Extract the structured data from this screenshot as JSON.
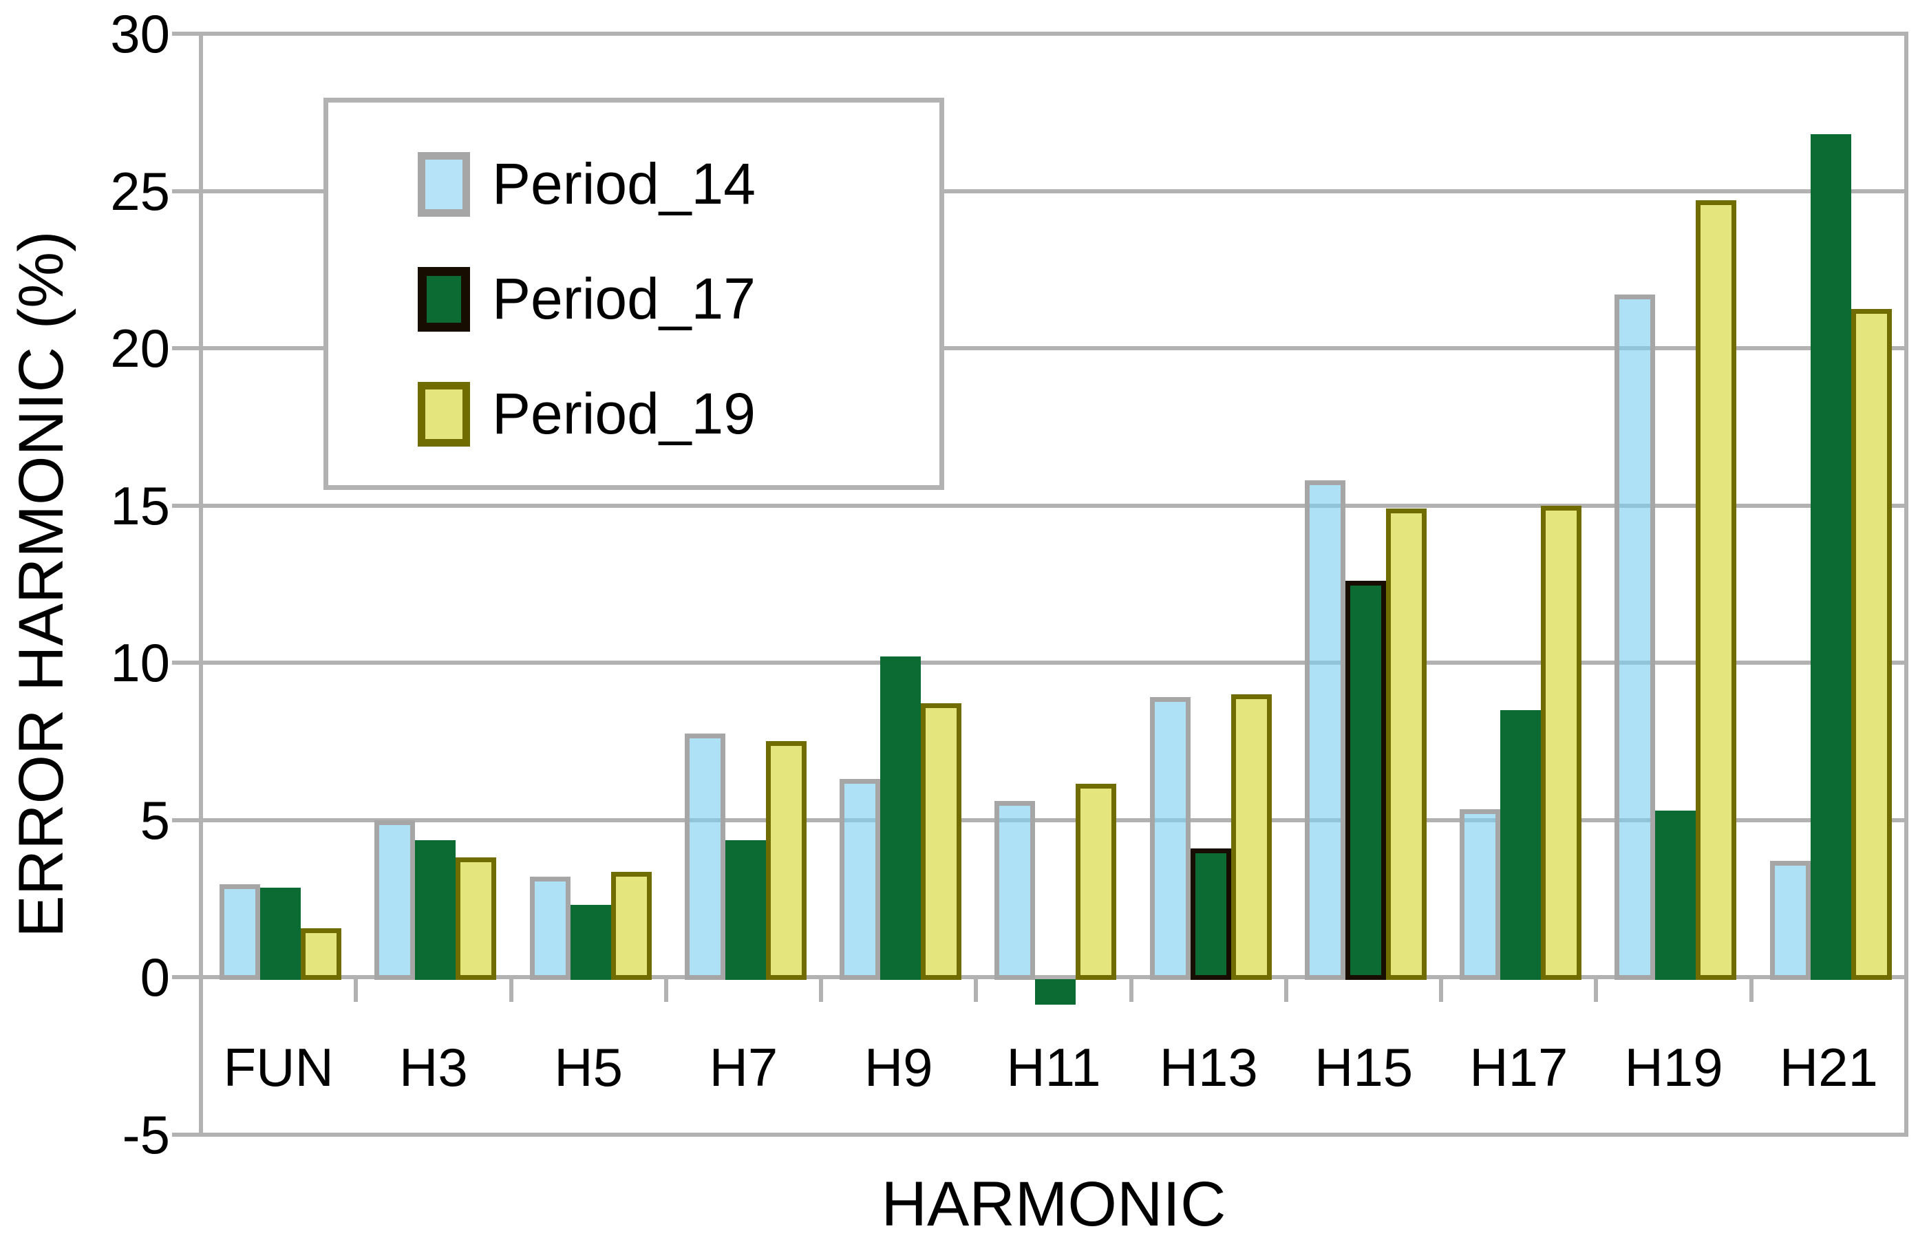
{
  "chart_data": {
    "type": "bar",
    "title": "",
    "xlabel": "HARMONIC",
    "ylabel": "ERROR HARMONIC (%)",
    "categories": [
      "FUN",
      "H3",
      "H5",
      "H7",
      "H9",
      "H11",
      "H13",
      "H15",
      "H17",
      "H19",
      "H21"
    ],
    "series": [
      {
        "name": "Period_14",
        "fill": "rgba(125,206,240,0.62)",
        "legend_fill": "#b6e3f7",
        "border_color": "#a6a6a6",
        "border_all": true,
        "bordered_bars": [],
        "values": [
          2.95,
          5.0,
          3.2,
          7.75,
          6.3,
          5.6,
          8.9,
          15.8,
          5.35,
          21.7,
          3.7
        ]
      },
      {
        "name": "Period_17",
        "fill": "#0c6a33",
        "legend_fill": "#0c6a33",
        "border_color": "#170d01",
        "border_all": false,
        "bordered_bars": [
          6,
          7
        ],
        "values": [
          2.85,
          4.35,
          2.3,
          4.35,
          10.2,
          -0.8,
          4.1,
          12.6,
          8.5,
          5.3,
          26.8
        ]
      },
      {
        "name": "Period_19",
        "fill": "#e4e57d",
        "legend_fill": "#e4e57d",
        "border_color": "#716c00",
        "border_all": true,
        "bordered_bars": [],
        "values": [
          1.55,
          3.8,
          3.35,
          7.5,
          8.7,
          6.15,
          9.0,
          14.9,
          15.0,
          24.7,
          21.25
        ]
      }
    ],
    "ylim": [
      -5,
      30
    ],
    "ytick_step": 5,
    "y_tick_labels": [
      "30",
      "25",
      "20",
      "15",
      "10",
      "5",
      "0",
      "-5"
    ],
    "grid": true,
    "legend_position": "upper-left",
    "colors": {
      "grid": "#b2b2b2",
      "frame": "#b2b2b2",
      "background": "#ffffff",
      "text": "#000000"
    }
  }
}
